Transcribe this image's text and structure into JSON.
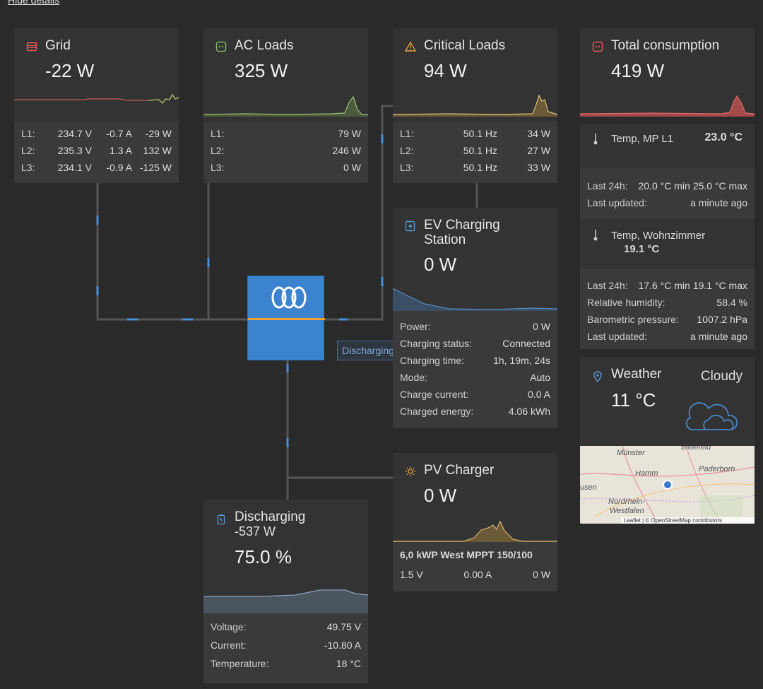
{
  "hide_details": "Hide details",
  "inverter_tag": "Discharging",
  "grid": {
    "title": "Grid",
    "value": "-22 W",
    "rows": [
      [
        "L1:",
        "234.7 V",
        "-0.7 A",
        "-29 W"
      ],
      [
        "L2:",
        "235.3 V",
        "1.3 A",
        "132 W"
      ],
      [
        "L3:",
        "234.1 V",
        "-0.9 A",
        "-125 W"
      ]
    ]
  },
  "ac_loads": {
    "title": "AC Loads",
    "value": "325 W",
    "rows": [
      [
        "L1:",
        "79 W"
      ],
      [
        "L2:",
        "246 W"
      ],
      [
        "L3:",
        "0 W"
      ]
    ]
  },
  "critical_loads": {
    "title": "Critical Loads",
    "value": "94 W",
    "rows": [
      [
        "L1:",
        "50.1 Hz",
        "34 W"
      ],
      [
        "L2:",
        "50.1 Hz",
        "27 W"
      ],
      [
        "L3:",
        "50.1 Hz",
        "33 W"
      ]
    ]
  },
  "total_consumption": {
    "title": "Total consumption",
    "value": "419 W"
  },
  "temp_mp": {
    "title": "Temp, MP L1",
    "value": "23.0 °C",
    "rows": [
      [
        "Last 24h:",
        "20.0 °C min",
        "25.0 °C max"
      ],
      [
        "Last updated:",
        "a minute ago"
      ]
    ]
  },
  "temp_living": {
    "title": "Temp, Wohnzimmer",
    "value": "19.1 °C",
    "rows": [
      [
        "Last 24h:",
        "17.6 °C min",
        "19.1 °C max"
      ],
      [
        "Relative humidity:",
        "58.4 %"
      ],
      [
        "Barometric pressure:",
        "1007.2 hPa"
      ],
      [
        "Last updated:",
        "a minute ago"
      ]
    ]
  },
  "weather": {
    "title": "Weather",
    "condition": "Cloudy",
    "value": "11 °C",
    "map_labels": [
      "Bielefeld",
      "Münster",
      "Hamm",
      "Paderborn",
      "usen",
      "Nordrhein-",
      "Westfalen"
    ],
    "attribution": "Leaflet | © OpenStreetMap contributors"
  },
  "ev": {
    "title": "EV Charging Station",
    "value": "0 W",
    "rows": [
      [
        "Power:",
        "0 W"
      ],
      [
        "Charging status:",
        "Connected"
      ],
      [
        "Charging time:",
        "1h, 19m, 24s"
      ],
      [
        "Mode:",
        "Auto"
      ],
      [
        "Charge current:",
        "0.0 A"
      ],
      [
        "Charged energy:",
        "4.06 kWh"
      ]
    ]
  },
  "pv": {
    "title": "PV Charger",
    "value": "0 W",
    "device": "6,0 kWP West MPPT 150/100",
    "readings": [
      "1.5 V",
      "0.00 A",
      "0 W"
    ]
  },
  "battery": {
    "state": "Discharging",
    "power": "-537 W",
    "soc": "75.0 %",
    "rows": [
      [
        "Voltage:",
        "49.75 V"
      ],
      [
        "Current:",
        "-10.80 A"
      ],
      [
        "Temperature:",
        "18 °C"
      ]
    ]
  }
}
